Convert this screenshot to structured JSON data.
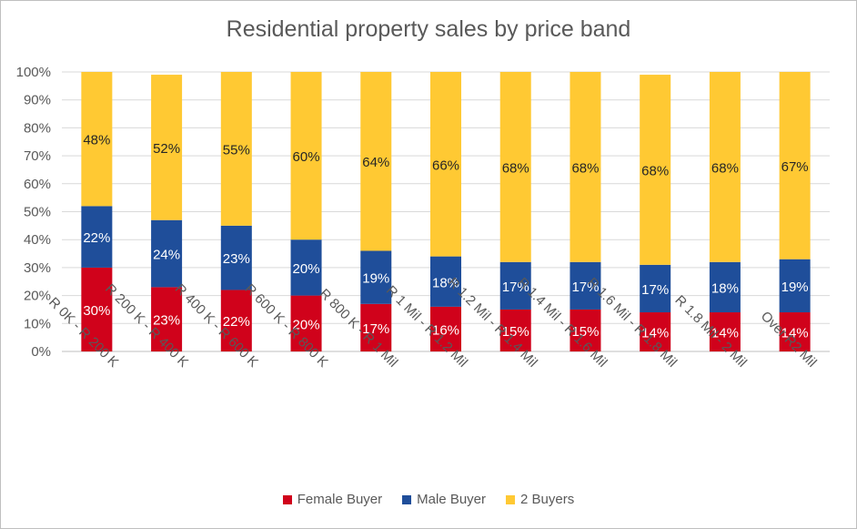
{
  "chart_data": {
    "type": "bar",
    "stacked": true,
    "title": "Residential property sales by price band",
    "categories": [
      "R 0K - R 200 K",
      "R 200 K - R 400 K",
      "R 400 K - R 600 K",
      "R 600 K - R 800 K",
      "R 800 K - R 1 Mil",
      "R 1 Mil - R 1.2 Mil",
      "R 1.2 Mil - R 1.4 Mil",
      "R 1.4 Mil - R 1.6 Mil",
      "R 1.6 Mil - R 1.8 Mil",
      "R 1.8 Mil - 2 Mil",
      "Over R2 Mil"
    ],
    "series": [
      {
        "name": "Female Buyer",
        "color": "#d0021b",
        "label_color": "#ffffff",
        "values": [
          30,
          23,
          22,
          20,
          17,
          16,
          15,
          15,
          14,
          14,
          14
        ]
      },
      {
        "name": "Male Buyer",
        "color": "#1f4e9a",
        "label_color": "#ffffff",
        "values": [
          22,
          24,
          23,
          20,
          19,
          18,
          17,
          17,
          17,
          18,
          19
        ]
      },
      {
        "name": "2 Buyers",
        "color": "#ffc933",
        "label_color": "#262626",
        "values": [
          48,
          52,
          55,
          60,
          64,
          66,
          68,
          68,
          68,
          68,
          67
        ]
      }
    ],
    "ylim": [
      0,
      100
    ],
    "yticks": [
      "0%",
      "10%",
      "20%",
      "30%",
      "40%",
      "50%",
      "60%",
      "70%",
      "80%",
      "90%",
      "100%"
    ],
    "grid": true,
    "legend_position": "bottom"
  }
}
